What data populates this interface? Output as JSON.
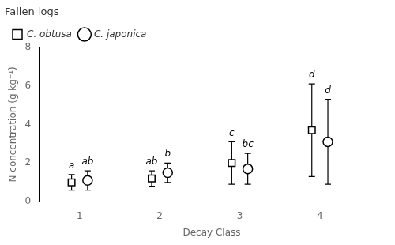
{
  "chart_data": {
    "type": "scatter",
    "title": "Fallen logs",
    "xlabel": "Decay Class",
    "ylabel": "N concentration (g kg⁻¹)",
    "xlim": [
      0.5,
      4.8
    ],
    "xticks": [
      1,
      2,
      3,
      4
    ],
    "ylim": [
      0,
      8
    ],
    "yticks": [
      0,
      2,
      4,
      6,
      8
    ],
    "grid": false,
    "legend": "upper left",
    "color": "#000000",
    "series": [
      {
        "name": "C. obtusa",
        "marker": "square",
        "x": [
          0.9,
          1.9,
          2.9,
          3.9
        ],
        "values": [
          1.0,
          1.2,
          2.0,
          3.7
        ],
        "errors": [
          0.4,
          0.4,
          1.1,
          2.4
        ],
        "annotations": [
          "a",
          "ab",
          "c",
          "d"
        ]
      },
      {
        "name": "C. japonica",
        "marker": "circle",
        "x": [
          1.1,
          2.1,
          3.1,
          4.1
        ],
        "values": [
          1.1,
          1.5,
          1.7,
          3.1
        ],
        "errors": [
          0.5,
          0.5,
          0.8,
          2.2
        ],
        "annotations": [
          "ab",
          "b",
          "bc",
          "d"
        ]
      }
    ]
  }
}
